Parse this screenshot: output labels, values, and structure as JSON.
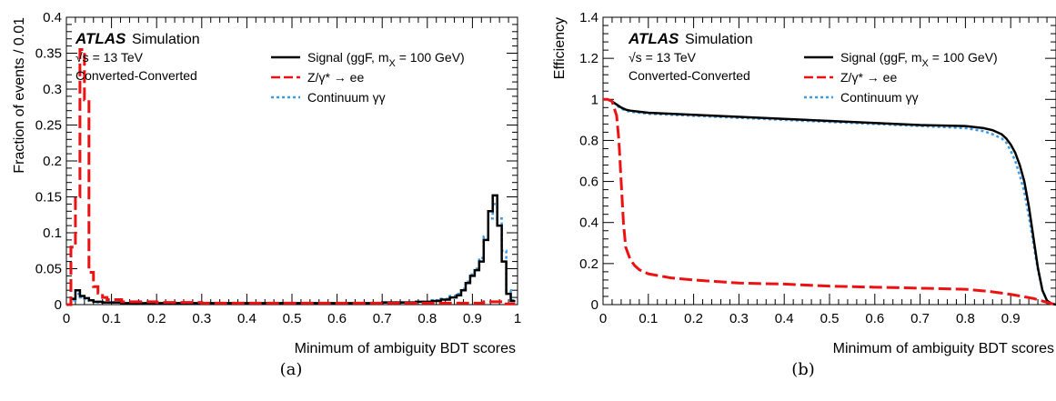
{
  "colors": {
    "signal": "#000000",
    "zee": "#ee1111",
    "continuum": "#3b9be6"
  },
  "chart_data": [
    {
      "type": "line",
      "panel_caption": "(a)",
      "xlabel": "Minimum of ambiguity BDT scores",
      "ylabel": "Fraction of events / 0.01",
      "xlim": [
        0,
        1
      ],
      "ylim": [
        0,
        0.4
      ],
      "xticks": [
        "0",
        "0.1",
        "0.2",
        "0.3",
        "0.4",
        "0.5",
        "0.6",
        "0.7",
        "0.8",
        "0.9",
        "1"
      ],
      "yticks": [
        "0",
        "0.05",
        "0.1",
        "0.15",
        "0.2",
        "0.25",
        "0.3",
        "0.35",
        "0.4"
      ],
      "atlas_label": "ATLAS",
      "atlas_suffix": "Simulation",
      "energy_label": "√s = 13 TeV",
      "category_label": "Converted-Converted",
      "legend": [
        "Signal (ggF, m",
        "X",
        " = 100 GeV)",
        "Z/γ*  → ee",
        "Continuum  γγ"
      ],
      "series": [
        {
          "name": "Signal (ggF, mX = 100 GeV)",
          "style": "solid",
          "x": [
            0.005,
            0.015,
            0.025,
            0.035,
            0.045,
            0.055,
            0.065,
            0.075,
            0.085,
            0.095,
            0.15,
            0.25,
            0.35,
            0.45,
            0.55,
            0.65,
            0.75,
            0.8,
            0.82,
            0.84,
            0.86,
            0.87,
            0.88,
            0.89,
            0.9,
            0.91,
            0.92,
            0.93,
            0.94,
            0.95,
            0.96,
            0.97,
            0.98,
            0.99
          ],
          "y": [
            0,
            0.008,
            0.02,
            0.012,
            0.009,
            0.006,
            0.004,
            0.004,
            0.003,
            0.003,
            0.002,
            0.002,
            0.002,
            0.002,
            0.002,
            0.002,
            0.003,
            0.004,
            0.005,
            0.007,
            0.01,
            0.013,
            0.02,
            0.03,
            0.04,
            0.048,
            0.06,
            0.09,
            0.13,
            0.152,
            0.11,
            0.06,
            0.015,
            0.005
          ]
        },
        {
          "name": "Z/γ* → ee",
          "style": "dashed",
          "x": [
            0.005,
            0.015,
            0.025,
            0.035,
            0.045,
            0.055,
            0.065,
            0.075,
            0.085,
            0.095,
            0.15,
            0.25,
            0.35,
            0.45,
            0.55,
            0.65,
            0.75,
            0.8,
            0.85,
            0.9,
            0.95,
            0.99
          ],
          "y": [
            0,
            0.08,
            0.15,
            0.355,
            0.285,
            0.045,
            0.025,
            0.016,
            0.01,
            0.007,
            0.004,
            0.003,
            0.002,
            0.002,
            0.002,
            0.002,
            0.002,
            0.002,
            0.002,
            0.002,
            0.004,
            0.001
          ]
        },
        {
          "name": "Continuum γγ",
          "style": "dotted",
          "x": [
            0.005,
            0.015,
            0.025,
            0.035,
            0.045,
            0.055,
            0.065,
            0.075,
            0.085,
            0.095,
            0.15,
            0.25,
            0.35,
            0.45,
            0.55,
            0.65,
            0.75,
            0.8,
            0.82,
            0.84,
            0.86,
            0.87,
            0.88,
            0.89,
            0.9,
            0.91,
            0.92,
            0.93,
            0.94,
            0.95,
            0.96,
            0.97,
            0.98,
            0.99
          ],
          "y": [
            0,
            0.006,
            0.015,
            0.01,
            0.008,
            0.005,
            0.004,
            0.003,
            0.003,
            0.003,
            0.002,
            0.002,
            0.002,
            0.002,
            0.002,
            0.002,
            0.003,
            0.004,
            0.006,
            0.008,
            0.012,
            0.015,
            0.022,
            0.032,
            0.042,
            0.05,
            0.065,
            0.095,
            0.12,
            0.14,
            0.12,
            0.075,
            0.02,
            0.006
          ]
        }
      ]
    },
    {
      "type": "line",
      "panel_caption": "(b)",
      "xlabel": "Minimum of ambiguity BDT scores",
      "ylabel": "Efficiency",
      "xlim": [
        0,
        1
      ],
      "ylim": [
        0,
        1.4
      ],
      "xticks": [
        "0",
        "0.1",
        "0.2",
        "0.3",
        "0.4",
        "0.5",
        "0.6",
        "0.7",
        "0.8",
        "0.9"
      ],
      "yticks": [
        "0",
        "0.2",
        "0.4",
        "0.6",
        "0.8",
        "1",
        "1.2",
        "1.4"
      ],
      "atlas_label": "ATLAS",
      "atlas_suffix": "Simulation",
      "energy_label": "√s = 13 TeV",
      "category_label": "Converted-Converted",
      "legend": [
        "Signal (ggF, m",
        "X",
        " = 100 GeV)",
        "Z/γ*  → ee",
        "Continuum γγ"
      ],
      "series": [
        {
          "name": "Signal (ggF, mX = 100 GeV)",
          "style": "solid",
          "x": [
            0,
            0.01,
            0.02,
            0.03,
            0.04,
            0.05,
            0.06,
            0.08,
            0.1,
            0.2,
            0.3,
            0.4,
            0.5,
            0.6,
            0.7,
            0.8,
            0.84,
            0.86,
            0.88,
            0.89,
            0.9,
            0.91,
            0.92,
            0.93,
            0.94,
            0.95,
            0.96,
            0.97,
            0.98,
            0.99,
            1.0
          ],
          "y": [
            1,
            1,
            0.99,
            0.975,
            0.96,
            0.95,
            0.945,
            0.94,
            0.935,
            0.925,
            0.915,
            0.905,
            0.895,
            0.885,
            0.875,
            0.87,
            0.86,
            0.85,
            0.83,
            0.81,
            0.78,
            0.74,
            0.68,
            0.6,
            0.48,
            0.33,
            0.18,
            0.07,
            0.02,
            0.005,
            0
          ]
        },
        {
          "name": "Z/γ* → ee",
          "style": "dashed",
          "x": [
            0,
            0.01,
            0.02,
            0.03,
            0.035,
            0.04,
            0.045,
            0.05,
            0.06,
            0.07,
            0.08,
            0.1,
            0.15,
            0.2,
            0.3,
            0.4,
            0.5,
            0.6,
            0.7,
            0.8,
            0.85,
            0.9,
            0.95,
            0.99,
            1.0
          ],
          "y": [
            1,
            1,
            0.99,
            0.92,
            0.8,
            0.6,
            0.4,
            0.28,
            0.22,
            0.19,
            0.17,
            0.15,
            0.13,
            0.12,
            0.105,
            0.1,
            0.09,
            0.085,
            0.08,
            0.075,
            0.065,
            0.05,
            0.03,
            0.005,
            0
          ]
        },
        {
          "name": "Continuum γγ",
          "style": "dotted",
          "x": [
            0,
            0.01,
            0.02,
            0.03,
            0.04,
            0.05,
            0.06,
            0.08,
            0.1,
            0.2,
            0.3,
            0.4,
            0.5,
            0.6,
            0.7,
            0.8,
            0.84,
            0.86,
            0.88,
            0.89,
            0.9,
            0.91,
            0.92,
            0.93,
            0.94,
            0.95,
            0.96,
            0.97,
            0.98,
            0.99,
            1.0
          ],
          "y": [
            1,
            1,
            0.99,
            0.97,
            0.955,
            0.945,
            0.94,
            0.935,
            0.93,
            0.92,
            0.91,
            0.9,
            0.89,
            0.88,
            0.87,
            0.86,
            0.845,
            0.83,
            0.81,
            0.79,
            0.75,
            0.7,
            0.63,
            0.55,
            0.43,
            0.3,
            0.17,
            0.07,
            0.02,
            0.005,
            0
          ]
        }
      ]
    }
  ]
}
